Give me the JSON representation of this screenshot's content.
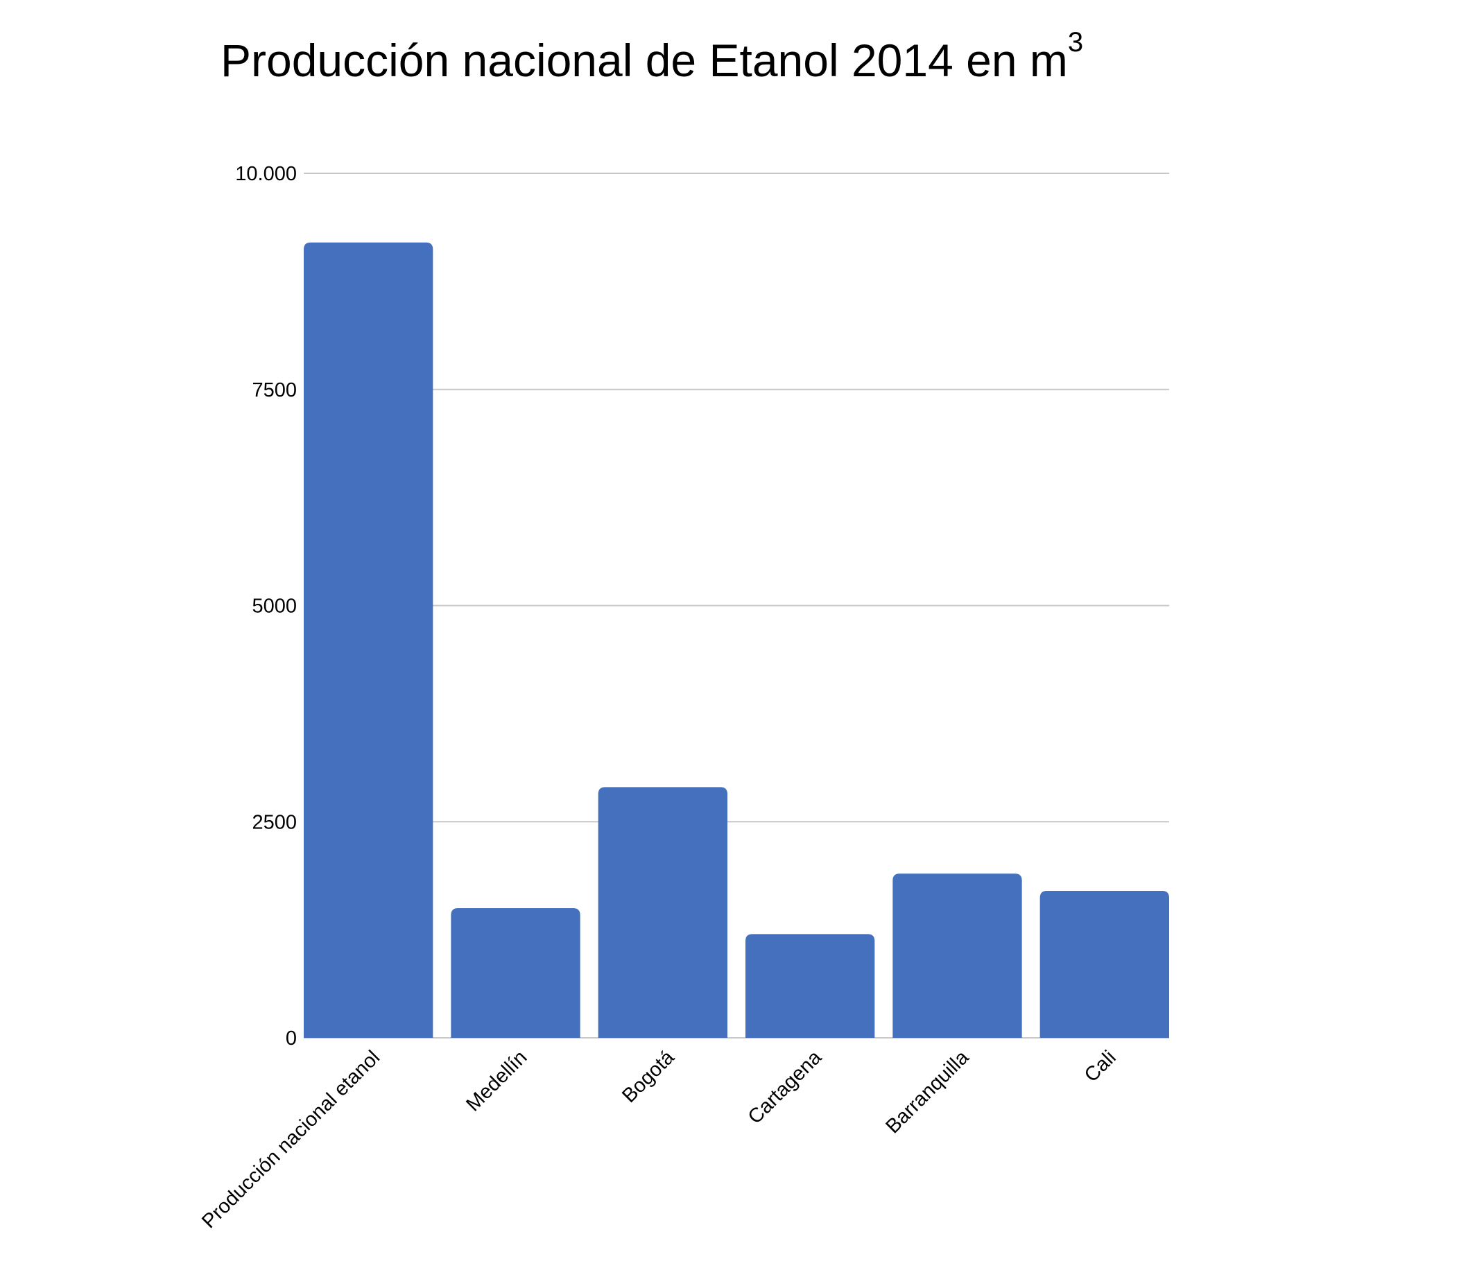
{
  "chart_data": {
    "type": "bar",
    "title": "Producción nacional de Etanol 2014 en m",
    "title_superscript": "3",
    "xlabel": "",
    "ylabel": "",
    "categories": [
      "Producción nacional etanol",
      "Medellín",
      "Bogotá",
      "Cartagena",
      "Barranquilla",
      "Cali"
    ],
    "values": [
      9200,
      1500,
      2900,
      1200,
      1900,
      1700
    ],
    "ylim": [
      0,
      10000
    ],
    "yticks": [
      0,
      2500,
      5000,
      7500,
      10000
    ],
    "ytick_labels": [
      "0",
      "2500",
      "5000",
      "7500",
      "10.000"
    ],
    "grid": true,
    "legend": "none",
    "colors": {
      "bar": "#4470bd",
      "grid": "#c8c8c8",
      "text": "#000000"
    }
  }
}
